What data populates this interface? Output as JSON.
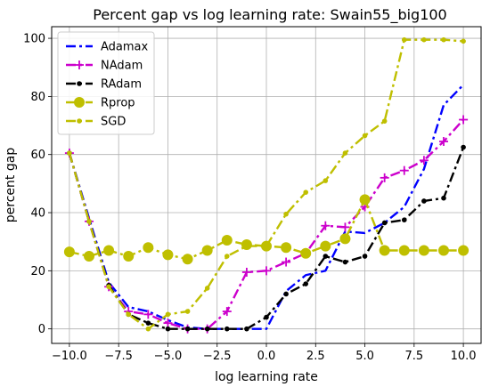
{
  "chart_data": {
    "type": "line",
    "title": "Percent gap vs log learning rate: Swain55_big100",
    "xlabel": "log learning rate",
    "ylabel": "percent gap",
    "xlim": [
      -10.9,
      10.9
    ],
    "ylim": [
      -5,
      104
    ],
    "xticks": [
      -10.0,
      -7.5,
      -5.0,
      -2.5,
      0.0,
      2.5,
      5.0,
      7.5,
      10.0
    ],
    "xtick_labels": [
      "−10.0",
      "−7.5",
      "−5.0",
      "−2.5",
      "0.0",
      "2.5",
      "5.0",
      "7.5",
      "10.0"
    ],
    "yticks": [
      0,
      20,
      40,
      60,
      80,
      100
    ],
    "ytick_labels": [
      "0",
      "20",
      "40",
      "60",
      "80",
      "100"
    ],
    "grid": true,
    "legend_position": "top-left",
    "x": [
      -10,
      -9,
      -8,
      -7,
      -6,
      -5,
      -4,
      -3,
      -2,
      -1,
      0,
      1,
      2,
      3,
      4,
      5,
      6,
      7,
      8,
      9,
      10
    ],
    "series": [
      {
        "name": "Adamax",
        "color": "#0000ff",
        "linestyle": "dashdot",
        "marker": "none",
        "values": [
          60.5,
          38,
          16,
          7.5,
          6,
          3,
          0.5,
          0,
          0,
          0,
          0,
          13,
          18.5,
          20,
          33.5,
          33,
          36.5,
          42,
          55,
          77,
          84
        ]
      },
      {
        "name": "NAdam",
        "color": "#cc00cc",
        "linestyle": "dashdot",
        "marker": "plus",
        "values": [
          60.5,
          37,
          14.5,
          6,
          5,
          2,
          0,
          0,
          6,
          19.5,
          20,
          23,
          26,
          35.5,
          35,
          42,
          52,
          54.5,
          58,
          64.5,
          72
        ]
      },
      {
        "name": "RAdam",
        "color": "#000000",
        "linestyle": "dashdot",
        "marker": "dot",
        "values": [
          60.5,
          37,
          15,
          5,
          2,
          0,
          0,
          0,
          0,
          0,
          4,
          12,
          15.5,
          25,
          23,
          25,
          36.5,
          37.5,
          44,
          45,
          62.5
        ]
      },
      {
        "name": "Rprop",
        "color": "#bfbf00",
        "linestyle": "dashdot",
        "marker": "circle",
        "values": [
          26.5,
          25,
          27,
          25,
          28,
          25.5,
          24,
          27,
          30.5,
          29,
          28.5,
          28,
          26,
          28.5,
          31,
          44.5,
          27,
          27,
          27,
          27,
          27
        ]
      },
      {
        "name": "SGD",
        "color": "#bfbf00",
        "linestyle": "dashdot",
        "marker": "dot",
        "values": [
          60.5,
          37,
          14.5,
          5,
          0,
          5,
          6,
          14,
          25,
          28.5,
          28.5,
          39.5,
          47,
          51,
          60.5,
          66.5,
          71.5,
          99.5,
          99.5,
          99.5,
          99
        ]
      }
    ]
  }
}
